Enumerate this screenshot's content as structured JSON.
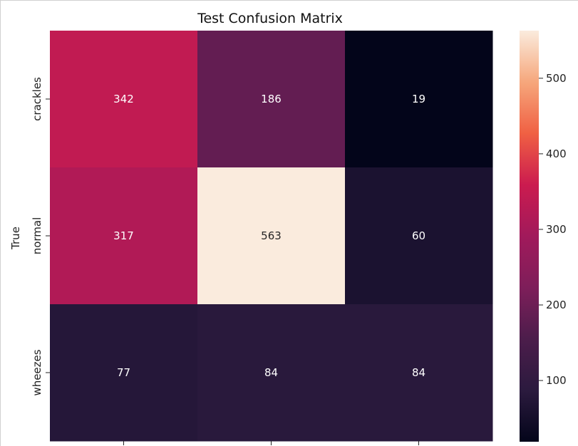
{
  "chart_data": {
    "type": "heatmap",
    "title": "Test Confusion Matrix",
    "ylabel": "True",
    "xlabel": "",
    "rows": [
      "crackles",
      "normal",
      "wheezes"
    ],
    "columns": [
      "",
      "",
      ""
    ],
    "values": [
      [
        342,
        186,
        19
      ],
      [
        317,
        563,
        60
      ],
      [
        77,
        84,
        84
      ]
    ],
    "colormap": "rocket",
    "colorbar": {
      "min": 19,
      "max": 563,
      "ticks": [
        100,
        200,
        300,
        400,
        500
      ]
    },
    "annotations": true
  }
}
